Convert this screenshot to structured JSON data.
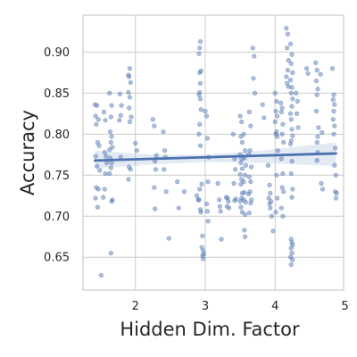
{
  "chart_data": {
    "type": "scatter",
    "title": "",
    "xlabel": "Hidden Dim. Factor",
    "ylabel": "Accuracy",
    "xlim": [
      1.25,
      4.98
    ],
    "ylim": [
      0.61,
      0.945
    ],
    "x_ticks": [
      2,
      3,
      4,
      5
    ],
    "x_tick_labels": [
      "2",
      "3",
      "4",
      "5"
    ],
    "y_ticks": [
      0.65,
      0.7,
      0.75,
      0.8,
      0.85,
      0.9
    ],
    "y_tick_labels": [
      "0.65",
      "0.70",
      "0.75",
      "0.80",
      "0.85",
      "0.90"
    ],
    "grid": true,
    "colors": {
      "points": "#4c72b0",
      "line": "#4c72b0",
      "band": "#4c72b0",
      "grid": "#cccccc",
      "spine": "#cccccc"
    },
    "regression": {
      "slope": 0.0025,
      "intercept": 0.7643,
      "band_at": [
        [
          1.42,
          0.758,
          0.78
        ],
        [
          2.2,
          0.763,
          0.775
        ],
        [
          3.0,
          0.766,
          0.775
        ],
        [
          3.8,
          0.765,
          0.78
        ],
        [
          4.87,
          0.761,
          0.79
        ]
      ]
    },
    "points": [
      [
        1.42,
        0.836
      ],
      [
        1.45,
        0.835
      ],
      [
        1.43,
        0.822
      ],
      [
        1.47,
        0.818
      ],
      [
        1.44,
        0.812
      ],
      [
        1.46,
        0.79
      ],
      [
        1.48,
        0.786
      ],
      [
        1.43,
        0.773
      ],
      [
        1.45,
        0.761
      ],
      [
        1.44,
        0.735
      ],
      [
        1.47,
        0.733
      ],
      [
        1.43,
        0.722
      ],
      [
        1.46,
        0.711
      ],
      [
        1.49,
        0.756
      ],
      [
        1.55,
        0.827
      ],
      [
        1.57,
        0.817
      ],
      [
        1.56,
        0.778
      ],
      [
        1.58,
        0.773
      ],
      [
        1.59,
        0.765
      ],
      [
        1.57,
        0.752
      ],
      [
        1.56,
        0.733
      ],
      [
        1.54,
        0.723
      ],
      [
        1.51,
        0.628
      ],
      [
        1.63,
        0.85
      ],
      [
        1.66,
        0.835
      ],
      [
        1.65,
        0.821
      ],
      [
        1.64,
        0.803
      ],
      [
        1.66,
        0.797
      ],
      [
        1.65,
        0.79
      ],
      [
        1.67,
        0.784
      ],
      [
        1.63,
        0.781
      ],
      [
        1.64,
        0.771
      ],
      [
        1.66,
        0.765
      ],
      [
        1.65,
        0.759
      ],
      [
        1.63,
        0.752
      ],
      [
        1.67,
        0.72
      ],
      [
        1.66,
        0.718
      ],
      [
        1.65,
        0.655
      ],
      [
        1.78,
        0.849
      ],
      [
        1.8,
        0.835
      ],
      [
        1.79,
        0.823
      ],
      [
        1.77,
        0.817
      ],
      [
        1.79,
        0.772
      ],
      [
        1.9,
        0.872
      ],
      [
        1.92,
        0.88
      ],
      [
        1.91,
        0.87
      ],
      [
        1.93,
        0.863
      ],
      [
        1.9,
        0.851
      ],
      [
        1.92,
        0.845
      ],
      [
        1.91,
        0.832
      ],
      [
        1.94,
        0.821
      ],
      [
        1.92,
        0.815
      ],
      [
        1.91,
        0.76
      ],
      [
        1.93,
        0.757
      ],
      [
        1.9,
        0.745
      ],
      [
        2.0,
        0.789
      ],
      [
        2.02,
        0.78
      ],
      [
        2.25,
        0.818
      ],
      [
        2.27,
        0.81
      ],
      [
        2.3,
        0.774
      ],
      [
        2.28,
        0.767
      ],
      [
        2.29,
        0.757
      ],
      [
        2.27,
        0.735
      ],
      [
        2.28,
        0.709
      ],
      [
        2.4,
        0.803
      ],
      [
        2.42,
        0.78
      ],
      [
        2.43,
        0.772
      ],
      [
        2.41,
        0.757
      ],
      [
        2.44,
        0.73
      ],
      [
        2.48,
        0.673
      ],
      [
        2.6,
        0.742
      ],
      [
        2.7,
        0.73
      ],
      [
        2.62,
        0.71
      ],
      [
        2.88,
        0.725
      ],
      [
        2.9,
        0.72
      ],
      [
        2.92,
        0.905
      ],
      [
        2.93,
        0.913
      ],
      [
        2.91,
        0.898
      ],
      [
        2.94,
        0.877
      ],
      [
        2.92,
        0.875
      ],
      [
        2.93,
        0.862
      ],
      [
        2.92,
        0.851
      ],
      [
        2.91,
        0.848
      ],
      [
        2.93,
        0.843
      ],
      [
        2.94,
        0.83
      ],
      [
        2.92,
        0.812
      ],
      [
        2.91,
        0.8
      ],
      [
        2.93,
        0.786
      ],
      [
        2.95,
        0.739
      ],
      [
        2.92,
        0.733
      ],
      [
        2.91,
        0.72
      ],
      [
        2.93,
        0.708
      ],
      [
        2.94,
        0.705
      ],
      [
        2.96,
        0.676
      ],
      [
        2.95,
        0.662
      ],
      [
        2.97,
        0.658
      ],
      [
        2.96,
        0.652
      ],
      [
        2.97,
        0.648
      ],
      [
        2.98,
        0.654
      ],
      [
        3.0,
        0.828
      ],
      [
        3.02,
        0.822
      ],
      [
        3.03,
        0.795
      ],
      [
        3.05,
        0.772
      ],
      [
        3.04,
        0.742
      ],
      [
        3.02,
        0.715
      ],
      [
        3.03,
        0.706
      ],
      [
        3.04,
        0.694
      ],
      [
        3.18,
        0.74
      ],
      [
        3.2,
        0.72
      ],
      [
        3.21,
        0.712
      ],
      [
        3.22,
        0.706
      ],
      [
        3.23,
        0.672
      ],
      [
        3.3,
        0.723
      ],
      [
        3.32,
        0.722
      ],
      [
        3.33,
        0.718
      ],
      [
        3.31,
        0.712
      ],
      [
        3.34,
        0.71
      ],
      [
        3.4,
        0.8
      ],
      [
        3.42,
        0.77
      ],
      [
        3.43,
        0.757
      ],
      [
        3.41,
        0.74
      ],
      [
        3.44,
        0.721
      ],
      [
        3.42,
        0.719
      ],
      [
        3.5,
        0.822
      ],
      [
        3.52,
        0.815
      ],
      [
        3.51,
        0.797
      ],
      [
        3.53,
        0.79
      ],
      [
        3.5,
        0.775
      ],
      [
        3.52,
        0.77
      ],
      [
        3.51,
        0.765
      ],
      [
        3.53,
        0.758
      ],
      [
        3.5,
        0.751
      ],
      [
        3.52,
        0.745
      ],
      [
        3.51,
        0.739
      ],
      [
        3.53,
        0.728
      ],
      [
        3.52,
        0.722
      ],
      [
        3.5,
        0.718
      ],
      [
        3.51,
        0.711
      ],
      [
        3.53,
        0.705
      ],
      [
        3.55,
        0.8
      ],
      [
        3.57,
        0.78
      ],
      [
        3.56,
        0.771
      ],
      [
        3.58,
        0.762
      ],
      [
        3.57,
        0.75
      ],
      [
        3.55,
        0.742
      ],
      [
        3.56,
        0.729
      ],
      [
        3.58,
        0.717
      ],
      [
        3.57,
        0.702
      ],
      [
        3.56,
        0.683
      ],
      [
        3.57,
        0.675
      ],
      [
        3.55,
        0.72
      ],
      [
        3.63,
        0.827
      ],
      [
        3.65,
        0.81
      ],
      [
        3.64,
        0.78
      ],
      [
        3.62,
        0.775
      ],
      [
        3.66,
        0.76
      ],
      [
        3.63,
        0.748
      ],
      [
        3.65,
        0.742
      ],
      [
        3.64,
        0.73
      ],
      [
        3.62,
        0.727
      ],
      [
        3.66,
        0.72
      ],
      [
        3.65,
        0.716
      ],
      [
        3.63,
        0.704
      ],
      [
        3.68,
        0.905
      ],
      [
        3.7,
        0.895
      ],
      [
        3.69,
        0.868
      ],
      [
        3.71,
        0.85
      ],
      [
        3.82,
        0.836
      ],
      [
        3.84,
        0.82
      ],
      [
        3.9,
        0.762
      ],
      [
        3.92,
        0.738
      ],
      [
        3.93,
        0.728
      ],
      [
        3.91,
        0.722
      ],
      [
        3.94,
        0.718
      ],
      [
        3.92,
        0.715
      ],
      [
        3.93,
        0.71
      ],
      [
        3.95,
        0.7
      ],
      [
        3.97,
        0.682
      ],
      [
        4.0,
        0.85
      ],
      [
        4.02,
        0.84
      ],
      [
        4.01,
        0.828
      ],
      [
        4.03,
        0.822
      ],
      [
        4.0,
        0.815
      ],
      [
        4.02,
        0.803
      ],
      [
        4.01,
        0.8
      ],
      [
        4.03,
        0.797
      ],
      [
        4.04,
        0.78
      ],
      [
        4.02,
        0.75
      ],
      [
        4.03,
        0.722
      ],
      [
        4.01,
        0.705
      ],
      [
        4.08,
        0.838
      ],
      [
        4.1,
        0.832
      ],
      [
        4.09,
        0.827
      ],
      [
        4.11,
        0.812
      ],
      [
        4.1,
        0.8
      ],
      [
        4.12,
        0.79
      ],
      [
        4.09,
        0.77
      ],
      [
        4.11,
        0.752
      ],
      [
        4.1,
        0.735
      ],
      [
        4.12,
        0.73
      ],
      [
        4.09,
        0.71
      ],
      [
        4.11,
        0.7
      ],
      [
        4.16,
        0.929
      ],
      [
        4.18,
        0.922
      ],
      [
        4.17,
        0.905
      ],
      [
        4.19,
        0.89
      ],
      [
        4.18,
        0.878
      ],
      [
        4.16,
        0.87
      ],
      [
        4.17,
        0.862
      ],
      [
        4.19,
        0.858
      ],
      [
        4.22,
        0.91
      ],
      [
        4.24,
        0.897
      ],
      [
        4.23,
        0.886
      ],
      [
        4.25,
        0.875
      ],
      [
        4.22,
        0.866
      ],
      [
        4.24,
        0.857
      ],
      [
        4.23,
        0.85
      ],
      [
        4.25,
        0.843
      ],
      [
        4.24,
        0.834
      ],
      [
        4.22,
        0.825
      ],
      [
        4.23,
        0.818
      ],
      [
        4.24,
        0.806
      ],
      [
        4.25,
        0.798
      ],
      [
        4.23,
        0.792
      ],
      [
        4.22,
        0.788
      ],
      [
        4.24,
        0.767
      ],
      [
        4.23,
        0.752
      ],
      [
        4.25,
        0.733
      ],
      [
        4.24,
        0.723
      ],
      [
        4.23,
        0.672
      ],
      [
        4.24,
        0.668
      ],
      [
        4.25,
        0.665
      ],
      [
        4.23,
        0.661
      ],
      [
        4.24,
        0.655
      ],
      [
        4.22,
        0.65
      ],
      [
        4.25,
        0.647
      ],
      [
        4.23,
        0.641
      ],
      [
        4.3,
        0.85
      ],
      [
        4.32,
        0.84
      ],
      [
        4.31,
        0.825
      ],
      [
        4.33,
        0.808
      ],
      [
        4.45,
        0.88
      ],
      [
        4.47,
        0.874
      ],
      [
        4.58,
        0.887
      ],
      [
        4.6,
        0.878
      ],
      [
        4.59,
        0.865
      ],
      [
        4.61,
        0.855
      ],
      [
        4.6,
        0.848
      ],
      [
        4.59,
        0.828
      ],
      [
        4.62,
        0.808
      ],
      [
        4.61,
        0.797
      ],
      [
        4.6,
        0.79
      ],
      [
        4.61,
        0.778
      ],
      [
        4.6,
        0.768
      ],
      [
        4.65,
        0.873
      ],
      [
        4.67,
        0.802
      ],
      [
        4.66,
        0.74
      ],
      [
        4.68,
        0.733
      ],
      [
        4.82,
        0.88
      ],
      [
        4.84,
        0.848
      ],
      [
        4.83,
        0.842
      ],
      [
        4.85,
        0.836
      ],
      [
        4.84,
        0.828
      ],
      [
        4.83,
        0.818
      ],
      [
        4.85,
        0.81
      ],
      [
        4.84,
        0.8
      ],
      [
        4.86,
        0.783
      ],
      [
        4.85,
        0.762
      ],
      [
        4.87,
        0.75
      ],
      [
        4.86,
        0.73
      ],
      [
        4.88,
        0.728
      ],
      [
        4.87,
        0.722
      ]
    ]
  }
}
